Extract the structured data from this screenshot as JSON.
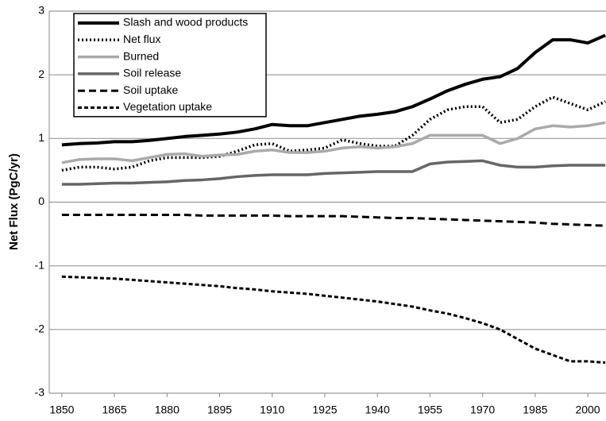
{
  "chart_data": {
    "type": "line",
    "y_label": "Net Flux (PgC/yr)",
    "x": [
      1850,
      1855,
      1860,
      1865,
      1870,
      1875,
      1880,
      1885,
      1890,
      1895,
      1900,
      1905,
      1910,
      1915,
      1920,
      1925,
      1930,
      1935,
      1940,
      1945,
      1950,
      1955,
      1960,
      1965,
      1970,
      1975,
      1980,
      1985,
      1990,
      1995,
      2000,
      2005
    ],
    "series": [
      {
        "name": "Slash and wood products",
        "color": "#000000",
        "style": "solid",
        "width": 4,
        "values": [
          0.9,
          0.92,
          0.93,
          0.95,
          0.95,
          0.97,
          1.0,
          1.03,
          1.05,
          1.07,
          1.1,
          1.15,
          1.22,
          1.2,
          1.2,
          1.25,
          1.3,
          1.35,
          1.38,
          1.42,
          1.5,
          1.62,
          1.75,
          1.85,
          1.93,
          1.97,
          2.1,
          2.35,
          2.55,
          2.55,
          2.5,
          2.62
        ]
      },
      {
        "name": "Net flux",
        "color": "#000000",
        "style": "dotted",
        "width": 3.5,
        "values": [
          0.5,
          0.55,
          0.55,
          0.52,
          0.55,
          0.65,
          0.7,
          0.7,
          0.7,
          0.72,
          0.8,
          0.9,
          0.92,
          0.8,
          0.82,
          0.85,
          0.98,
          0.92,
          0.88,
          0.88,
          1.05,
          1.3,
          1.45,
          1.5,
          1.5,
          1.25,
          1.3,
          1.5,
          1.65,
          1.55,
          1.45,
          1.58
        ]
      },
      {
        "name": "Burned",
        "color": "#aaaaaa",
        "style": "solid",
        "width": 3.5,
        "values": [
          0.62,
          0.67,
          0.68,
          0.68,
          0.65,
          0.7,
          0.75,
          0.76,
          0.72,
          0.74,
          0.75,
          0.8,
          0.82,
          0.78,
          0.78,
          0.8,
          0.85,
          0.87,
          0.85,
          0.87,
          0.92,
          1.05,
          1.05,
          1.05,
          1.05,
          0.92,
          1.0,
          1.15,
          1.2,
          1.18,
          1.2,
          1.25
        ]
      },
      {
        "name": "Soil release",
        "color": "#666666",
        "style": "solid",
        "width": 3.5,
        "values": [
          0.28,
          0.28,
          0.29,
          0.3,
          0.3,
          0.31,
          0.32,
          0.34,
          0.35,
          0.37,
          0.4,
          0.42,
          0.43,
          0.43,
          0.43,
          0.45,
          0.46,
          0.47,
          0.48,
          0.48,
          0.48,
          0.6,
          0.63,
          0.64,
          0.65,
          0.58,
          0.55,
          0.55,
          0.57,
          0.58,
          0.58,
          0.58
        ]
      },
      {
        "name": "Soil uptake",
        "color": "#000000",
        "style": "dashed",
        "width": 3,
        "values": [
          -0.2,
          -0.2,
          -0.2,
          -0.2,
          -0.2,
          -0.2,
          -0.2,
          -0.2,
          -0.21,
          -0.21,
          -0.21,
          -0.21,
          -0.21,
          -0.22,
          -0.22,
          -0.22,
          -0.22,
          -0.23,
          -0.24,
          -0.25,
          -0.25,
          -0.26,
          -0.27,
          -0.28,
          -0.29,
          -0.3,
          -0.31,
          -0.32,
          -0.34,
          -0.35,
          -0.36,
          -0.37
        ]
      },
      {
        "name": "Vegetation uptake",
        "color": "#000000",
        "style": "short-dashed",
        "width": 3,
        "values": [
          -1.17,
          -1.18,
          -1.19,
          -1.2,
          -1.22,
          -1.24,
          -1.26,
          -1.28,
          -1.3,
          -1.32,
          -1.35,
          -1.37,
          -1.4,
          -1.42,
          -1.44,
          -1.47,
          -1.5,
          -1.53,
          -1.56,
          -1.6,
          -1.64,
          -1.7,
          -1.75,
          -1.82,
          -1.9,
          -2.0,
          -2.15,
          -2.3,
          -2.4,
          -2.5,
          -2.5,
          -2.52
        ]
      }
    ],
    "xlim": [
      1846.4,
      2005.2
    ],
    "xticks": [
      1850,
      1865,
      1880,
      1895,
      1910,
      1925,
      1940,
      1955,
      1970,
      1985,
      2000
    ],
    "ylim": [
      -3,
      3
    ],
    "yticks": [
      -3,
      -2,
      -1,
      0,
      1,
      2,
      3
    ],
    "grid": true,
    "legend": "top-left"
  }
}
